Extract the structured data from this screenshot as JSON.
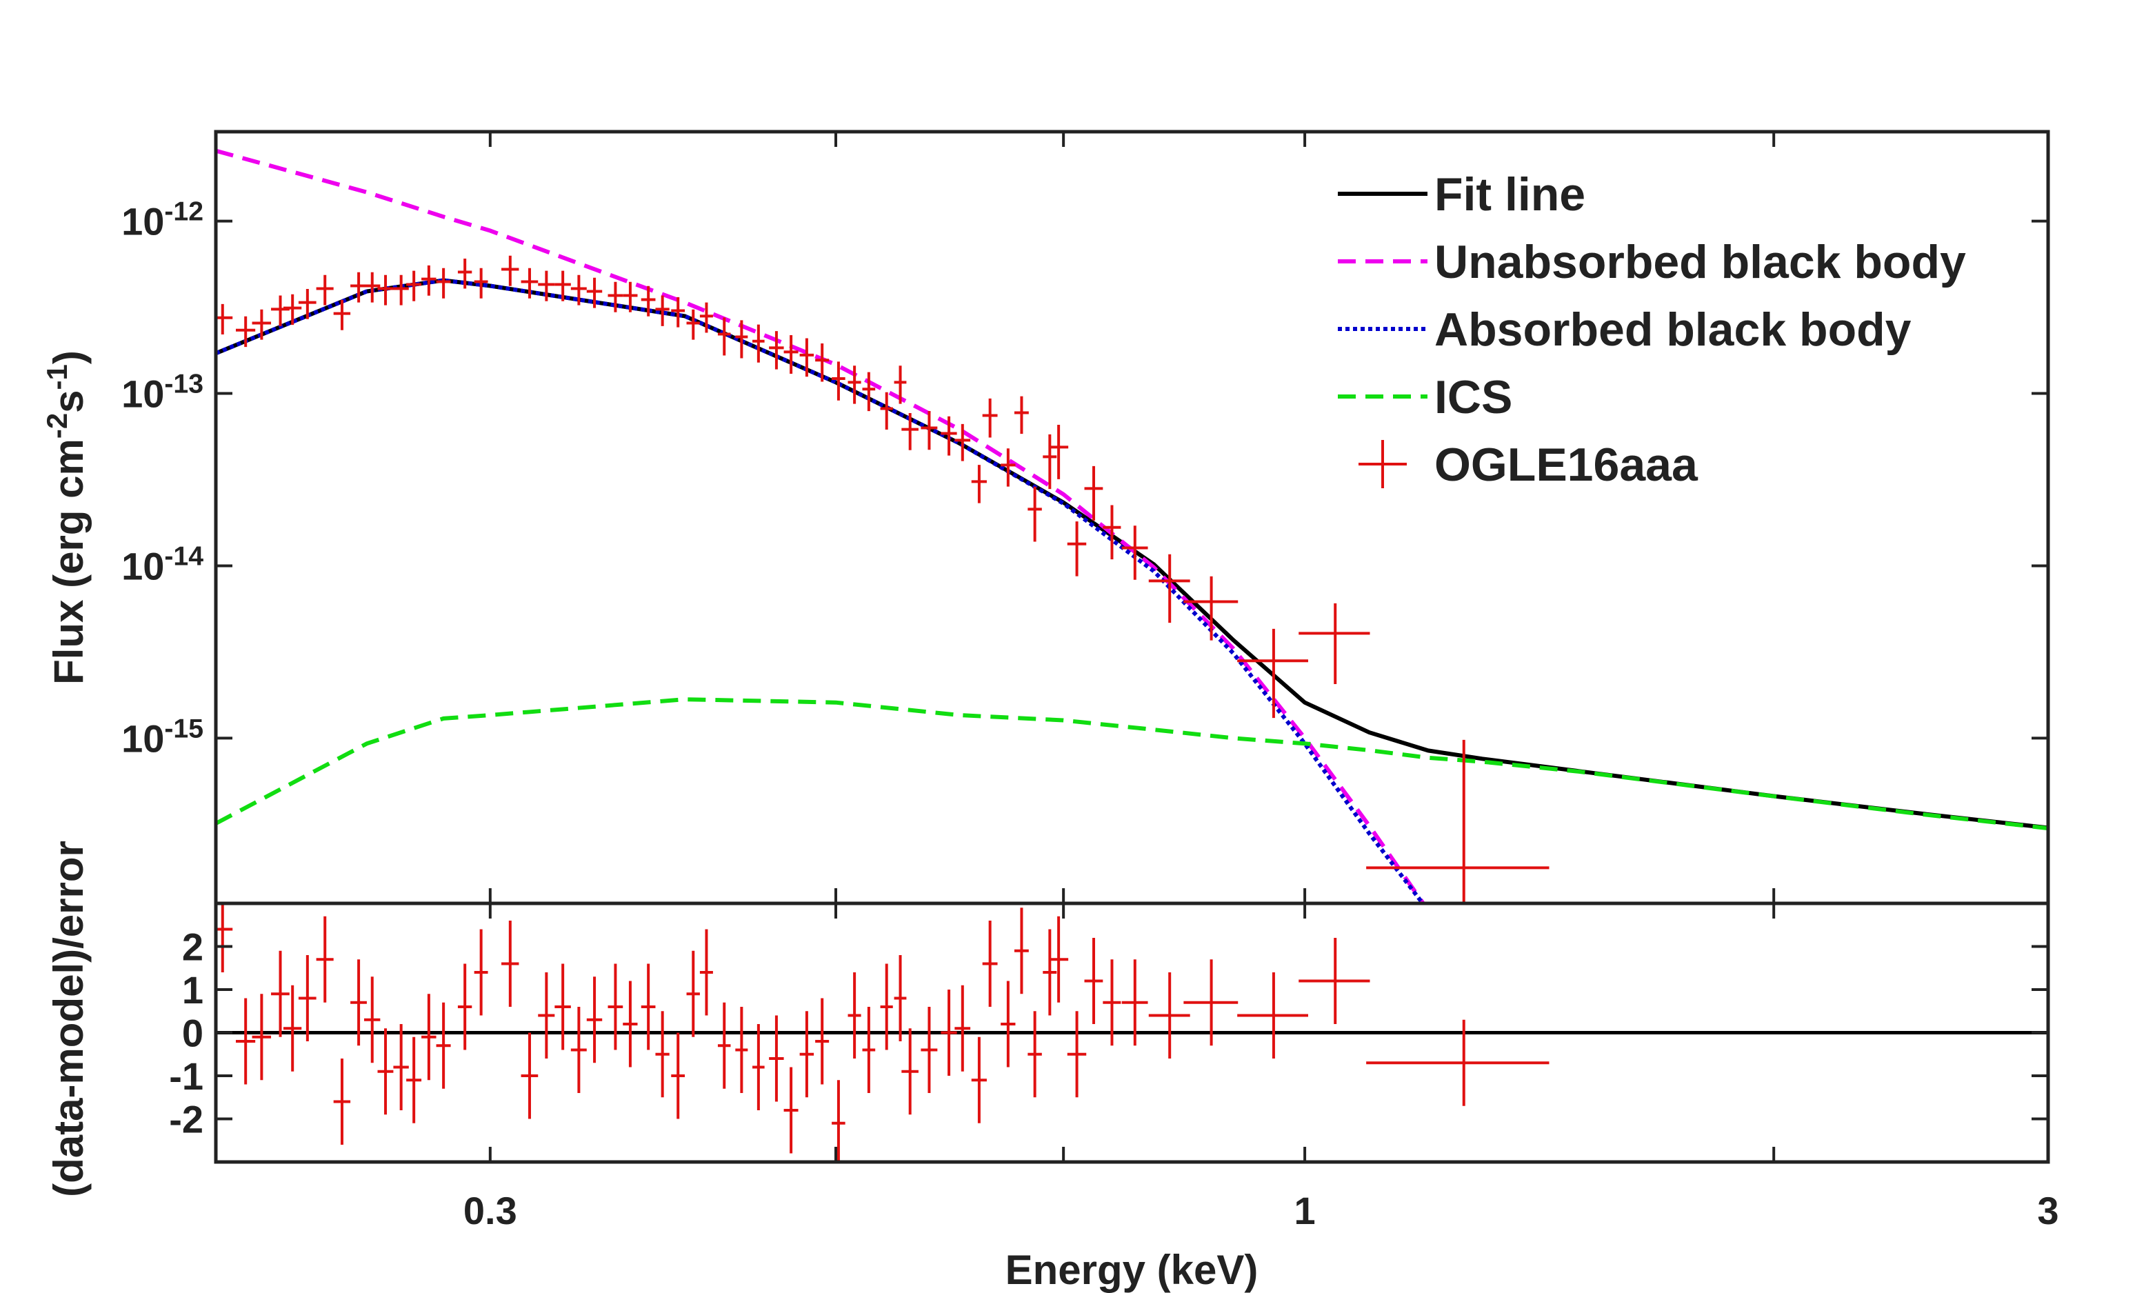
{
  "x_axis": {
    "label": "Energy (keV)",
    "log": true,
    "xlim": [
      0.2,
      3
    ],
    "xticks": [
      0.3,
      1,
      3
    ],
    "minor_ticks": [
      0.5,
      0.7,
      2
    ]
  },
  "chart_data": [
    {
      "type": "line",
      "ylabel": "Flux (erg cm^{-2}s^{-1})",
      "ylog": true,
      "ylim": [
        1.1e-16,
        3.3e-12
      ],
      "yticks": [
        {
          "value": 1e-12,
          "label": "10^{-12}"
        },
        {
          "value": 1e-13,
          "label": "10^{-13}"
        },
        {
          "value": 1e-14,
          "label": "10^{-14}"
        },
        {
          "value": 1e-15,
          "label": "10^{-15}"
        }
      ],
      "legend": "upper right",
      "x": [
        0.2,
        0.25,
        0.28,
        0.3,
        0.4,
        0.5,
        0.6,
        0.7,
        0.8,
        0.9,
        1,
        1.1,
        1.2,
        1.3,
        1.5,
        2,
        2.5,
        3
      ],
      "series": [
        {
          "name": "Fit line",
          "color": "#000000",
          "dash": "solid",
          "values": [
            1.71e-13,
            3.91e-13,
            4.53e-13,
            4.21e-13,
            2.81e-13,
            1.16e-13,
            5.15e-14,
            2.33e-14,
            1.02e-14,
            3.7e-15,
            1.61e-15,
            1.08e-15,
            8.47e-16,
            7.59e-16,
            6.43e-16,
            4.61e-16,
            3.63e-16,
            3.02e-16
          ]
        },
        {
          "name": "Unabsorbed black body",
          "color": "#ee00ee",
          "dash": "dashed",
          "values": [
            2.56e-12,
            1.47e-12,
            1.06e-12,
            8.8e-13,
            3.37e-13,
            1.47e-13,
            6.2e-14,
            2.6e-14,
            9.8e-15,
            3.3e-15,
            1e-15,
            3.1e-16,
            1e-16,
            null,
            null,
            null,
            null,
            null
          ]
        },
        {
          "name": "Absorbed black body",
          "color": "#0000cc",
          "dash": "dotted",
          "values": [
            1.71e-13,
            3.91e-13,
            4.53e-13,
            4.21e-13,
            2.81e-13,
            1.16e-13,
            5.15e-14,
            2.3e-14,
            9.3e-15,
            3.1e-15,
            9.3e-16,
            2.8e-16,
            1e-16,
            null,
            null,
            null,
            null,
            null
          ]
        },
        {
          "name": "ICS",
          "color": "#11dd11",
          "dash": "dashed",
          "values": [
            3.2e-16,
            9.3e-16,
            1.3e-15,
            1.36e-15,
            1.68e-15,
            1.61e-15,
            1.36e-15,
            1.27e-15,
            1.12e-15,
            1e-15,
            9.3e-16,
            8.5e-16,
            7.7e-16,
            7.3e-16,
            6.4e-16,
            4.6e-16,
            3.6e-16,
            3e-16
          ]
        }
      ],
      "points": {
        "name": "OGLE16aaa",
        "color": "#e01010",
        "x": [
          0.202,
          0.209,
          0.214,
          0.22,
          0.224,
          0.229,
          0.235,
          0.241,
          0.247,
          0.252,
          0.257,
          0.263,
          0.268,
          0.274,
          0.28,
          0.289,
          0.296,
          0.309,
          0.318,
          0.326,
          0.334,
          0.342,
          0.35,
          0.361,
          0.369,
          0.379,
          0.387,
          0.396,
          0.405,
          0.413,
          0.424,
          0.435,
          0.446,
          0.458,
          0.468,
          0.479,
          0.49,
          0.502,
          0.514,
          0.525,
          0.539,
          0.55,
          0.558,
          0.574,
          0.591,
          0.603,
          0.618,
          0.628,
          0.645,
          0.658,
          0.671,
          0.686,
          0.695,
          0.714,
          0.732,
          0.752,
          0.778,
          0.819,
          0.871,
          0.955,
          1.046,
          1.265
        ],
        "values": [
          2.75e-13,
          2.33e-13,
          2.56e-13,
          3.08e-13,
          3.13e-13,
          3.37e-13,
          4.06e-13,
          2.91e-13,
          4.21e-13,
          4.21e-13,
          4.06e-13,
          4.06e-13,
          4.29e-13,
          4.61e-13,
          4.45e-13,
          5.06e-13,
          4.45e-13,
          5.25e-13,
          4.45e-13,
          4.29e-13,
          4.29e-13,
          4.06e-13,
          3.91e-13,
          3.7e-13,
          3.7e-13,
          3.5e-13,
          3.08e-13,
          3.02e-13,
          2.56e-13,
          2.81e-13,
          2.21e-13,
          2.13e-13,
          2.01e-13,
          1.84e-13,
          1.74e-13,
          1.67e-13,
          1.56e-13,
          1.22e-13,
          1.16e-13,
          1.06e-13,
          8.17e-14,
          1.16e-13,
          6.19e-14,
          6.31e-14,
          5.86e-14,
          5.35e-14,
          3.08e-14,
          7.45e-14,
          3.84e-14,
          7.73e-14,
          2.13e-14,
          4.29e-14,
          4.88e-14,
          1.34e-14,
          2.81e-14,
          1.67e-14,
          1.27e-14,
          8.17e-15,
          6.19e-15,
          2.81e-15,
          4.06e-15,
          1.77e-16
        ],
        "xerr": [
          0.003,
          0.003,
          0.003,
          0.003,
          0.003,
          0.003,
          0.003,
          0.003,
          0.003,
          0.003,
          0.003,
          0.003,
          0.003,
          0.003,
          0.003,
          0.003,
          0.003,
          0.004,
          0.004,
          0.004,
          0.004,
          0.004,
          0.004,
          0.004,
          0.004,
          0.004,
          0.004,
          0.004,
          0.004,
          0.004,
          0.004,
          0.004,
          0.004,
          0.005,
          0.005,
          0.005,
          0.005,
          0.005,
          0.005,
          0.005,
          0.005,
          0.005,
          0.007,
          0.007,
          0.007,
          0.007,
          0.007,
          0.007,
          0.007,
          0.007,
          0.007,
          0.007,
          0.01,
          0.01,
          0.01,
          0.01,
          0.015,
          0.025,
          0.035,
          0.05,
          0.055,
          0.17
        ],
        "yerr": [
          5.5e-14,
          4.7e-14,
          5.1e-14,
          6.2e-14,
          6.3e-14,
          6.7e-14,
          8.1e-14,
          5.8e-14,
          8.4e-14,
          8.4e-14,
          8.1e-14,
          8.1e-14,
          8.6e-14,
          9.2e-14,
          8.9e-14,
          1e-13,
          8.9e-14,
          1.05e-13,
          8.9e-14,
          8.6e-14,
          8.6e-14,
          8.1e-14,
          7.8e-14,
          7.4e-14,
          7.4e-14,
          7e-14,
          6.2e-14,
          6e-14,
          5.1e-14,
          5.6e-14,
          5.5e-14,
          5.3e-14,
          5e-14,
          4.6e-14,
          4.4e-14,
          4.2e-14,
          3.9e-14,
          3.1e-14,
          2.9e-14,
          2.7e-14,
          2e-14,
          2.9e-14,
          1.5e-14,
          1.6e-14,
          1.5e-14,
          1.3e-14,
          7.7e-15,
          1.9e-14,
          9.6e-15,
          1.9e-14,
          7.5e-15,
          1.5e-14,
          1.7e-14,
          4.7e-15,
          9.8e-15,
          5.8e-15,
          4.4e-15,
          3.5e-15,
          2.5e-15,
          1.5e-15,
          2e-15,
          8e-16
        ]
      }
    },
    {
      "type": "scatter",
      "ylabel": "(data-model)/error",
      "color": "#e01010",
      "ylim": [
        -3,
        3
      ],
      "yticks": [
        -2,
        -1,
        0,
        1,
        2
      ],
      "zero_line": 0,
      "values": [
        2.4,
        -0.2,
        -0.1,
        0.9,
        0.1,
        0.8,
        1.7,
        -1.6,
        0.7,
        0.3,
        -0.9,
        -0.8,
        -1.1,
        -0.1,
        -0.3,
        0.6,
        1.4,
        1.6,
        -1.0,
        0.4,
        0.6,
        -0.4,
        0.3,
        0.6,
        0.2,
        0.6,
        -0.5,
        -1.0,
        0.9,
        1.4,
        -0.3,
        -0.4,
        -0.8,
        -0.6,
        -1.8,
        -0.5,
        -0.2,
        -2.1,
        0.4,
        -0.4,
        0.6,
        0.8,
        -0.9,
        -0.4,
        0.0,
        0.1,
        -1.1,
        1.6,
        0.2,
        1.9,
        -0.5,
        1.4,
        1.7,
        -0.5,
        1.2,
        0.7,
        0.7,
        0.4,
        0.7,
        0.4,
        1.2,
        -0.7
      ],
      "yerr": 1
    }
  ]
}
